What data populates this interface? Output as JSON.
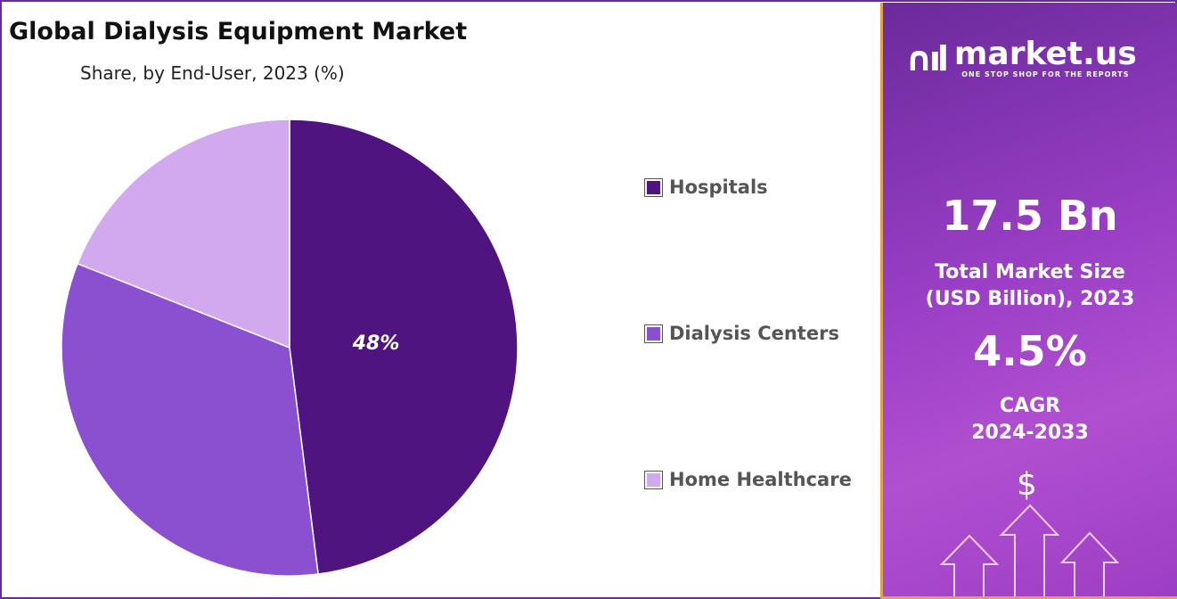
{
  "chart_data": {
    "type": "pie",
    "title": "Global Dialysis Equipment Market",
    "subtitle": "Share, by End-User, 2023 (%)",
    "categories": [
      "Hospitals",
      "Dialysis Centers",
      "Home Healthcare"
    ],
    "values": [
      48,
      33,
      19
    ],
    "colors": [
      "#4f1480",
      "#8a50d0",
      "#d2a8ee"
    ],
    "data_labels": [
      "48%",
      "",
      ""
    ],
    "legend_position": "right"
  },
  "panel": {
    "logo_name": "market.us",
    "logo_tagline": "ONE STOP SHOP FOR THE REPORTS",
    "market_size": "17.5 Bn",
    "market_size_label_1": "Total Market Size",
    "market_size_label_2": "(USD Billion), 2023",
    "cagr": "4.5%",
    "cagr_label": "CAGR",
    "cagr_period": "2024-2033",
    "dollar_symbol": "$"
  }
}
